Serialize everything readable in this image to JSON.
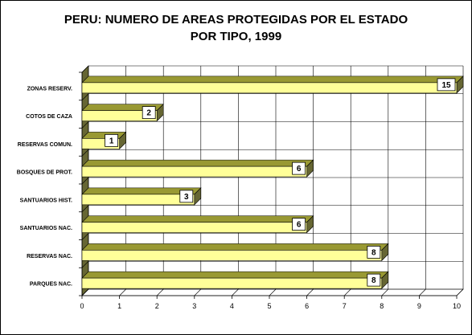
{
  "chart_data": {
    "type": "bar",
    "orientation": "horizontal",
    "title_lines": [
      "PERU: NUMERO DE AREAS PROTEGIDAS POR EL ESTADO",
      "POR TIPO, 1999"
    ],
    "categories": [
      "ZONAS RESERV.",
      "COTOS DE CAZA",
      "RESERVAS COMUN.",
      "BOSQUES DE PROT.",
      "SANTUARIOS HIST.",
      "SANTUARIOS NAC.",
      "RESERVAS NAC.",
      "PARQUES NAC."
    ],
    "values": [
      15,
      2,
      1,
      6,
      3,
      6,
      8,
      8
    ],
    "data_labels": [
      "15",
      "2",
      "1",
      "6",
      "3",
      "6",
      "8",
      "8"
    ],
    "xlim": [
      0,
      10
    ],
    "x_ticks": [
      0,
      1,
      2,
      3,
      4,
      5,
      6,
      7,
      8,
      9,
      10
    ],
    "xlabel": "",
    "ylabel": "",
    "grid": true,
    "legend": "none",
    "colors": {
      "bar_front": "#ffff99",
      "bar_top": "#999933",
      "bar_side": "#666633",
      "wall_top": "#999933",
      "wall_side": "#666633",
      "grid": "#000000",
      "label_box": "#ffffff"
    }
  }
}
